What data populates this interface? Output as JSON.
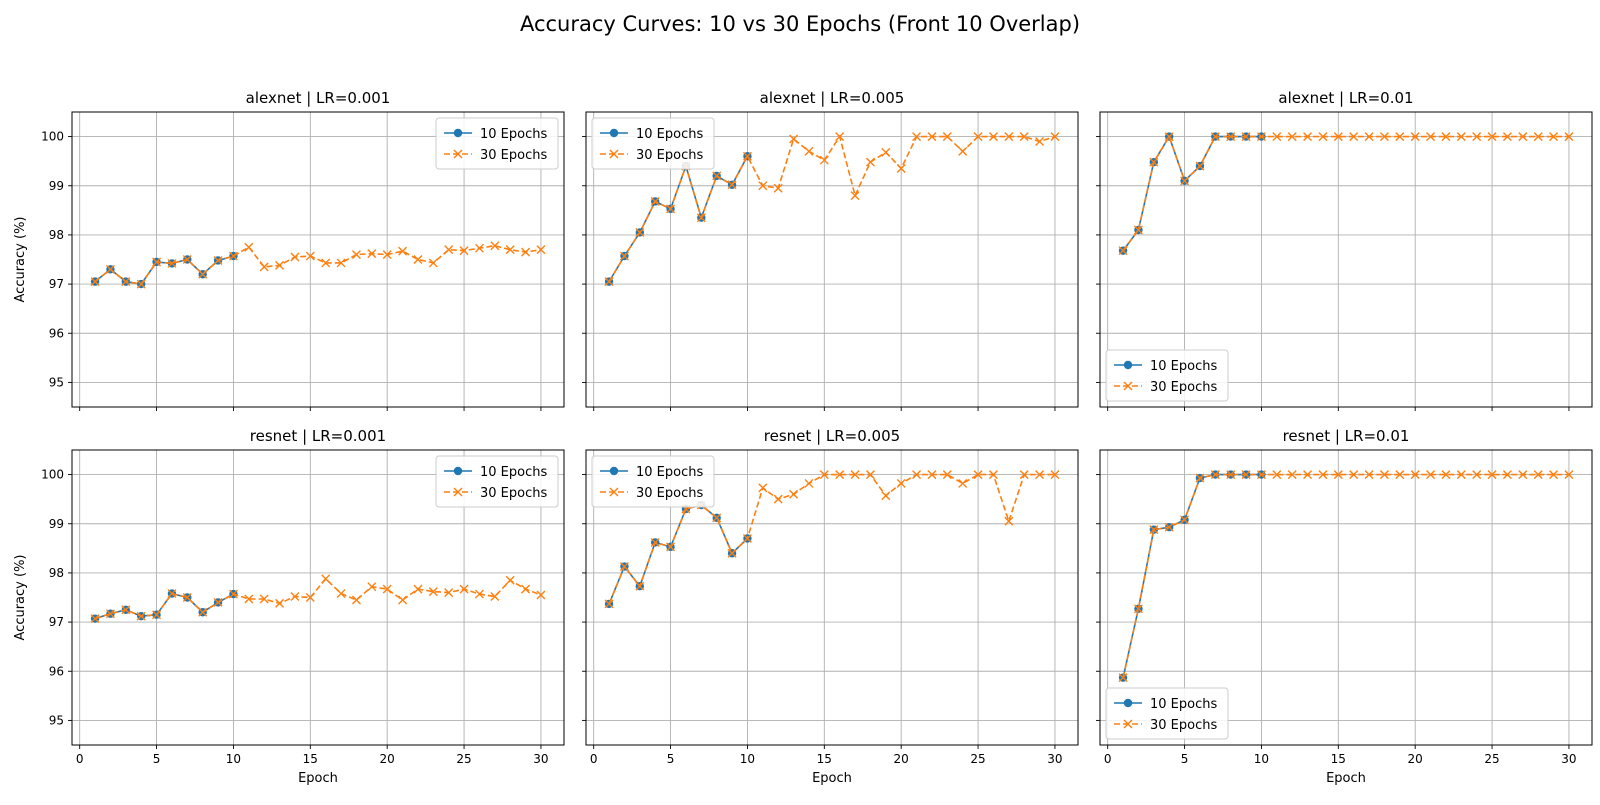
{
  "figure": {
    "title": "Accuracy Curves: 10 vs 30 Epochs (Front 10 Overlap)",
    "series_colors": {
      "10 Epochs": "#1f77b4",
      "30 Epochs": "#ff7f0e"
    },
    "grid_color": "#b0b0b0"
  },
  "chart_data": [
    {
      "type": "line",
      "title": "alexnet | LR=0.001",
      "xlabel": "",
      "ylabel": "Accuracy (%)",
      "xlim": [
        -0.5,
        31.5
      ],
      "ylim": [
        94.5,
        100.5
      ],
      "xticks": [
        0,
        5,
        10,
        15,
        20,
        25,
        30
      ],
      "yticks": [
        95,
        96,
        97,
        98,
        99,
        100
      ],
      "show_xticklabels": false,
      "show_yticklabels": true,
      "grid": true,
      "legend": "upper right",
      "series": [
        {
          "name": "10 Epochs",
          "marker": "circle",
          "linestyle": "solid",
          "x": [
            1,
            2,
            3,
            4,
            5,
            6,
            7,
            8,
            9,
            10
          ],
          "values": [
            97.05,
            97.3,
            97.05,
            97.0,
            97.45,
            97.42,
            97.5,
            97.2,
            97.48,
            97.57
          ]
        },
        {
          "name": "30 Epochs",
          "marker": "x",
          "linestyle": "dashed",
          "x": [
            1,
            2,
            3,
            4,
            5,
            6,
            7,
            8,
            9,
            10,
            11,
            12,
            13,
            14,
            15,
            16,
            17,
            18,
            19,
            20,
            21,
            22,
            23,
            24,
            25,
            26,
            27,
            28,
            29,
            30
          ],
          "values": [
            97.05,
            97.3,
            97.05,
            97.0,
            97.45,
            97.42,
            97.5,
            97.2,
            97.48,
            97.57,
            97.75,
            97.35,
            97.38,
            97.55,
            97.57,
            97.43,
            97.43,
            97.6,
            97.62,
            97.6,
            97.67,
            97.5,
            97.43,
            97.7,
            97.68,
            97.73,
            97.78,
            97.7,
            97.65,
            97.7
          ]
        }
      ]
    },
    {
      "type": "line",
      "title": "alexnet | LR=0.005",
      "xlabel": "",
      "ylabel": "",
      "xlim": [
        -0.5,
        31.5
      ],
      "ylim": [
        94.5,
        100.5
      ],
      "xticks": [
        0,
        5,
        10,
        15,
        20,
        25,
        30
      ],
      "yticks": [
        95,
        96,
        97,
        98,
        99,
        100
      ],
      "show_xticklabels": false,
      "show_yticklabels": false,
      "grid": true,
      "legend": "upper left",
      "series": [
        {
          "name": "10 Epochs",
          "marker": "circle",
          "linestyle": "solid",
          "x": [
            1,
            2,
            3,
            4,
            5,
            6,
            7,
            8,
            9,
            10
          ],
          "values": [
            97.05,
            97.57,
            98.05,
            98.68,
            98.53,
            99.4,
            98.35,
            99.2,
            99.02,
            99.6
          ]
        },
        {
          "name": "30 Epochs",
          "marker": "x",
          "linestyle": "dashed",
          "x": [
            1,
            2,
            3,
            4,
            5,
            6,
            7,
            8,
            9,
            10,
            11,
            12,
            13,
            14,
            15,
            16,
            17,
            18,
            19,
            20,
            21,
            22,
            23,
            24,
            25,
            26,
            27,
            28,
            29,
            30
          ],
          "values": [
            97.05,
            97.57,
            98.05,
            98.68,
            98.53,
            99.4,
            98.35,
            99.2,
            99.02,
            99.6,
            99.0,
            98.95,
            99.95,
            99.7,
            99.52,
            100.0,
            98.8,
            99.48,
            99.68,
            99.35,
            100.0,
            100.0,
            100.0,
            99.7,
            100.0,
            100.0,
            100.0,
            100.0,
            99.9,
            100.0
          ]
        }
      ]
    },
    {
      "type": "line",
      "title": "alexnet | LR=0.01",
      "xlabel": "",
      "ylabel": "",
      "xlim": [
        -0.5,
        31.5
      ],
      "ylim": [
        94.5,
        100.5
      ],
      "xticks": [
        0,
        5,
        10,
        15,
        20,
        25,
        30
      ],
      "yticks": [
        95,
        96,
        97,
        98,
        99,
        100
      ],
      "show_xticklabels": false,
      "show_yticklabels": false,
      "grid": true,
      "legend": "lower left",
      "series": [
        {
          "name": "10 Epochs",
          "marker": "circle",
          "linestyle": "solid",
          "x": [
            1,
            2,
            3,
            4,
            5,
            6,
            7,
            8,
            9,
            10
          ],
          "values": [
            97.68,
            98.1,
            99.48,
            100.0,
            99.1,
            99.4,
            100.0,
            100.0,
            100.0,
            100.0
          ]
        },
        {
          "name": "30 Epochs",
          "marker": "x",
          "linestyle": "dashed",
          "x": [
            1,
            2,
            3,
            4,
            5,
            6,
            7,
            8,
            9,
            10,
            11,
            12,
            13,
            14,
            15,
            16,
            17,
            18,
            19,
            20,
            21,
            22,
            23,
            24,
            25,
            26,
            27,
            28,
            29,
            30
          ],
          "values": [
            97.68,
            98.1,
            99.48,
            100.0,
            99.1,
            99.4,
            100.0,
            100.0,
            100.0,
            100.0,
            100,
            100,
            100,
            100,
            100,
            100,
            100,
            100,
            100,
            100,
            100,
            100,
            100,
            100,
            100,
            100,
            100,
            100,
            100,
            100
          ]
        }
      ]
    },
    {
      "type": "line",
      "title": "resnet | LR=0.001",
      "xlabel": "Epoch",
      "ylabel": "Accuracy (%)",
      "xlim": [
        -0.5,
        31.5
      ],
      "ylim": [
        94.5,
        100.5
      ],
      "xticks": [
        0,
        5,
        10,
        15,
        20,
        25,
        30
      ],
      "yticks": [
        95,
        96,
        97,
        98,
        99,
        100
      ],
      "show_xticklabels": true,
      "show_yticklabels": true,
      "grid": true,
      "legend": "upper right",
      "series": [
        {
          "name": "10 Epochs",
          "marker": "circle",
          "linestyle": "solid",
          "x": [
            1,
            2,
            3,
            4,
            5,
            6,
            7,
            8,
            9,
            10
          ],
          "values": [
            97.07,
            97.17,
            97.25,
            97.12,
            97.15,
            97.58,
            97.5,
            97.2,
            97.4,
            97.57
          ]
        },
        {
          "name": "30 Epochs",
          "marker": "x",
          "linestyle": "dashed",
          "x": [
            1,
            2,
            3,
            4,
            5,
            6,
            7,
            8,
            9,
            10,
            11,
            12,
            13,
            14,
            15,
            16,
            17,
            18,
            19,
            20,
            21,
            22,
            23,
            24,
            25,
            26,
            27,
            28,
            29,
            30
          ],
          "values": [
            97.07,
            97.17,
            97.25,
            97.12,
            97.15,
            97.58,
            97.5,
            97.2,
            97.4,
            97.57,
            97.47,
            97.47,
            97.38,
            97.52,
            97.5,
            97.88,
            97.58,
            97.45,
            97.72,
            97.67,
            97.45,
            97.67,
            97.62,
            97.6,
            97.67,
            97.57,
            97.52,
            97.85,
            97.67,
            97.55
          ]
        }
      ]
    },
    {
      "type": "line",
      "title": "resnet | LR=0.005",
      "xlabel": "Epoch",
      "ylabel": "",
      "xlim": [
        -0.5,
        31.5
      ],
      "ylim": [
        94.5,
        100.5
      ],
      "xticks": [
        0,
        5,
        10,
        15,
        20,
        25,
        30
      ],
      "yticks": [
        95,
        96,
        97,
        98,
        99,
        100
      ],
      "show_xticklabels": true,
      "show_yticklabels": false,
      "grid": true,
      "legend": "upper left",
      "series": [
        {
          "name": "10 Epochs",
          "marker": "circle",
          "linestyle": "solid",
          "x": [
            1,
            2,
            3,
            4,
            5,
            6,
            7,
            8,
            9,
            10
          ],
          "values": [
            97.37,
            98.13,
            97.73,
            98.62,
            98.53,
            99.3,
            99.38,
            99.12,
            98.4,
            98.7
          ]
        },
        {
          "name": "30 Epochs",
          "marker": "x",
          "linestyle": "dashed",
          "x": [
            1,
            2,
            3,
            4,
            5,
            6,
            7,
            8,
            9,
            10,
            11,
            12,
            13,
            14,
            15,
            16,
            17,
            18,
            19,
            20,
            21,
            22,
            23,
            24,
            25,
            26,
            27,
            28,
            29,
            30
          ],
          "values": [
            97.37,
            98.13,
            97.73,
            98.62,
            98.53,
            99.3,
            99.38,
            99.12,
            98.4,
            98.7,
            99.73,
            99.5,
            99.6,
            99.82,
            100.0,
            100.0,
            100.0,
            100.0,
            99.57,
            99.82,
            100.0,
            100.0,
            100.0,
            99.82,
            100.0,
            100.0,
            99.05,
            100.0,
            100.0,
            100.0
          ]
        }
      ]
    },
    {
      "type": "line",
      "title": "resnet | LR=0.01",
      "xlabel": "Epoch",
      "ylabel": "",
      "xlim": [
        -0.5,
        31.5
      ],
      "ylim": [
        94.5,
        100.5
      ],
      "xticks": [
        0,
        5,
        10,
        15,
        20,
        25,
        30
      ],
      "yticks": [
        95,
        96,
        97,
        98,
        99,
        100
      ],
      "show_xticklabels": true,
      "show_yticklabels": false,
      "grid": true,
      "legend": "lower left",
      "series": [
        {
          "name": "10 Epochs",
          "marker": "circle",
          "linestyle": "solid",
          "x": [
            1,
            2,
            3,
            4,
            5,
            6,
            7,
            8,
            9,
            10
          ],
          "values": [
            95.87,
            97.27,
            98.88,
            98.93,
            99.08,
            99.93,
            100.0,
            100.0,
            100.0,
            100.0
          ]
        },
        {
          "name": "30 Epochs",
          "marker": "x",
          "linestyle": "dashed",
          "x": [
            1,
            2,
            3,
            4,
            5,
            6,
            7,
            8,
            9,
            10,
            11,
            12,
            13,
            14,
            15,
            16,
            17,
            18,
            19,
            20,
            21,
            22,
            23,
            24,
            25,
            26,
            27,
            28,
            29,
            30
          ],
          "values": [
            95.87,
            97.27,
            98.88,
            98.93,
            99.08,
            99.93,
            100.0,
            100.0,
            100.0,
            100.0,
            100,
            100,
            100,
            100,
            100,
            100,
            100,
            100,
            100,
            100,
            100,
            100,
            100,
            100,
            100,
            100,
            100,
            100,
            100,
            100
          ]
        }
      ]
    }
  ]
}
